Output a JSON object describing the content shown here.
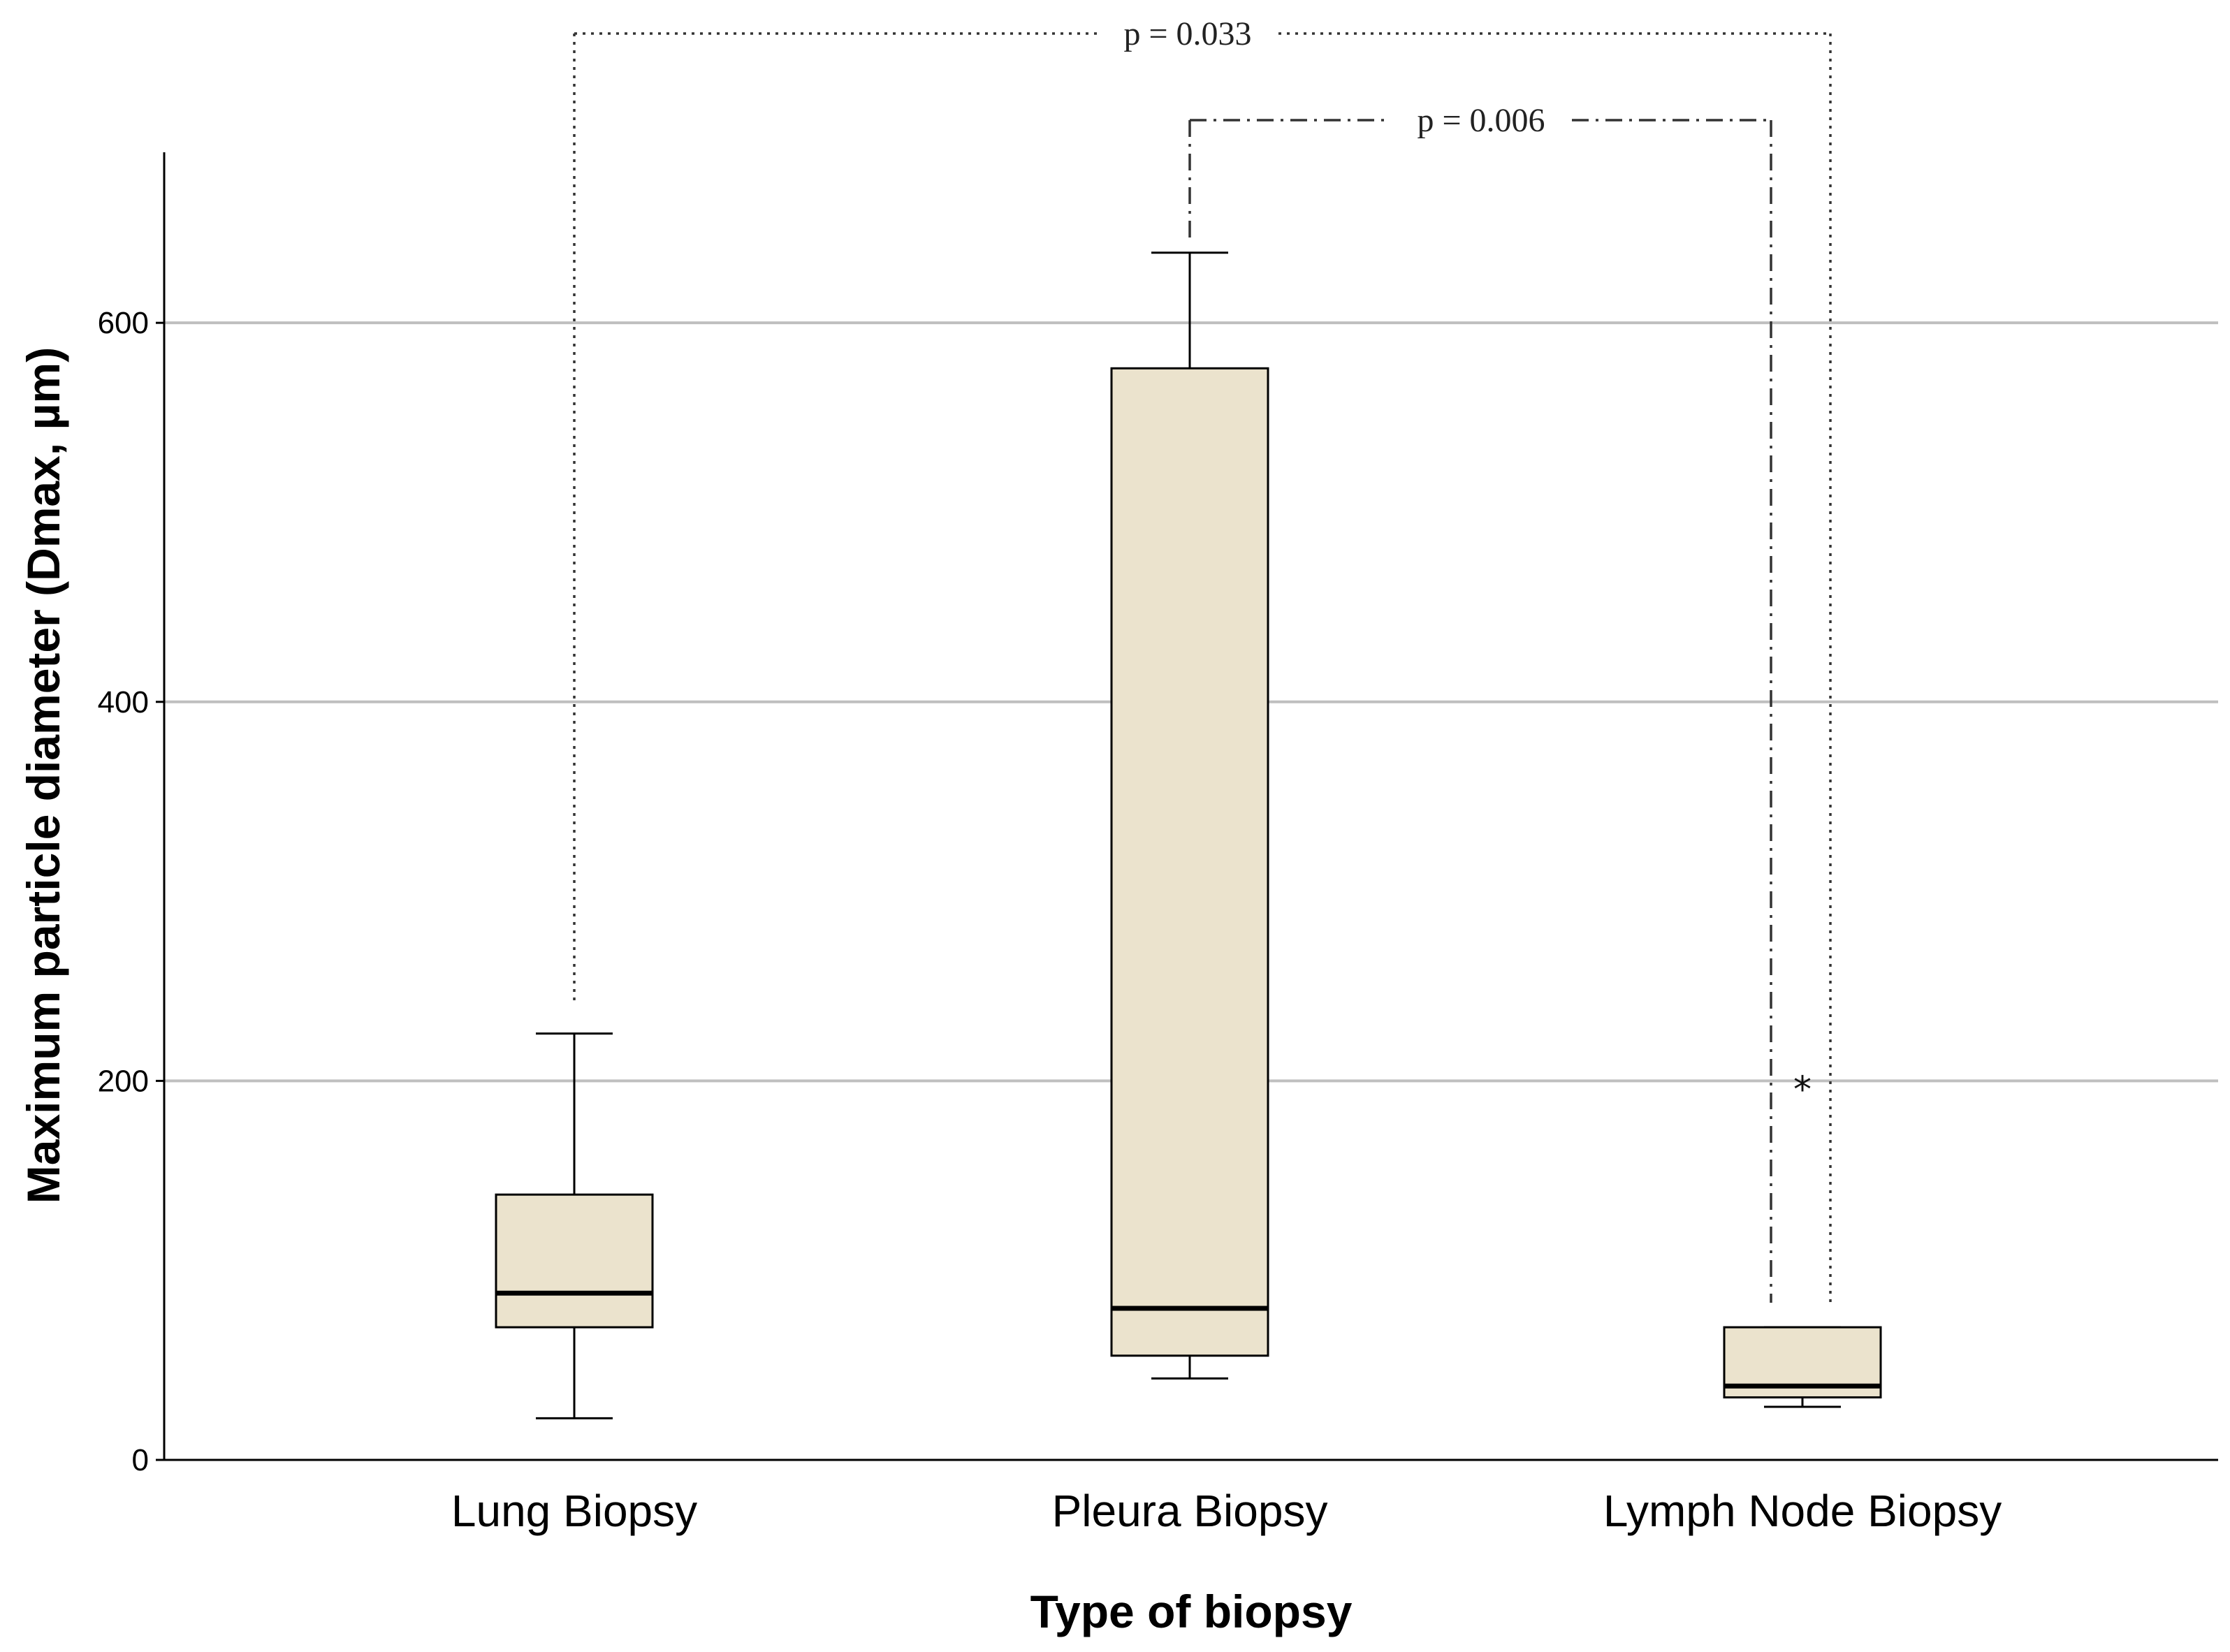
{
  "chart_data": {
    "type": "box",
    "xlabel": "Type of biopsy",
    "ylabel": "Maximum particle diameter (Dmax, µm)",
    "ylim": [
      0,
      690
    ],
    "yticks": [
      0,
      200,
      400,
      600
    ],
    "grid": true,
    "box_fill": "#ebe3cd",
    "categories": [
      "Lung Biopsy",
      "Pleura Biopsy",
      "Lymph Node Biopsy"
    ],
    "boxes": [
      {
        "category": "Lung Biopsy",
        "whisker_low": 22,
        "q1": 70,
        "median": 88,
        "q3": 140,
        "whisker_high": 225,
        "outliers": []
      },
      {
        "category": "Pleura Biopsy",
        "whisker_low": 43,
        "q1": 55,
        "median": 80,
        "q3": 576,
        "whisker_high": 637,
        "outliers": []
      },
      {
        "category": "Lymph Node Biopsy",
        "whisker_low": 28,
        "q1": 33,
        "median": 39,
        "q3": 70,
        "whisker_high": 70,
        "outliers": [
          200
        ]
      }
    ],
    "outlier_marker": "*",
    "comparisons": [
      {
        "label": "p = 0.033",
        "from": "Lung Biopsy",
        "to": "Lymph Node Biopsy",
        "style": "dotted"
      },
      {
        "label": "p = 0.006",
        "from": "Pleura Biopsy",
        "to": "Lymph Node Biopsy",
        "style": "dash-dot"
      }
    ]
  }
}
